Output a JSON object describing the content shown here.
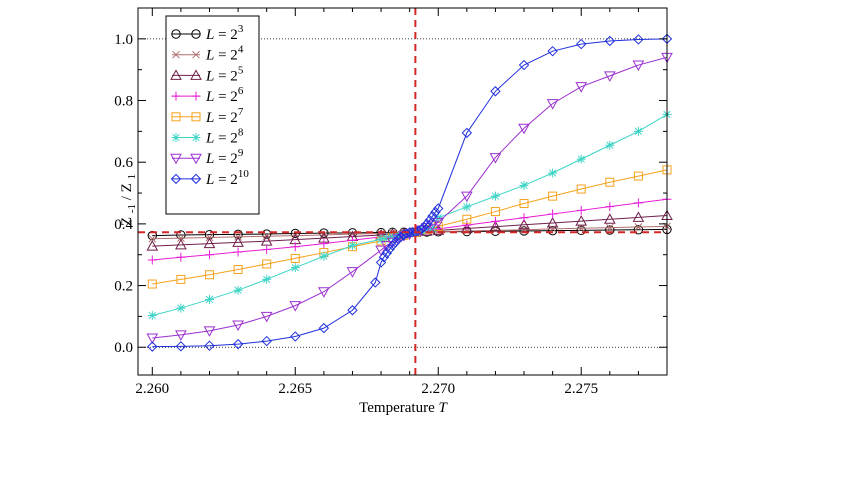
{
  "chart_data": {
    "type": "line",
    "xlabel": "Temperature",
    "xlabel_symbol": "T",
    "ylabel": "Z",
    "ylabel_num_sub": "-1",
    "ylabel_den": "Z",
    "ylabel_den_sub": "1",
    "xlim": [
      2.2595,
      2.278
    ],
    "ylim": [
      -0.09,
      1.1
    ],
    "xticks": [
      2.26,
      2.265,
      2.27,
      2.275
    ],
    "xtick_labels": [
      "2.260",
      "2.265",
      "2.270",
      "2.275"
    ],
    "yticks": [
      0.0,
      0.2,
      0.4,
      0.6,
      0.8,
      1.0
    ],
    "ytick_labels": [
      "0.0",
      "0.2",
      "0.4",
      "0.6",
      "0.8",
      "1.0"
    ],
    "reference_lines": {
      "critical_temperature": 2.2692,
      "critical_ratio": 0.373,
      "dotted_levels": [
        0.0,
        1.0
      ]
    },
    "legend_position": "top-left",
    "series": [
      {
        "name": "L = 2^3",
        "name_base": "L = 2",
        "name_exp": "3",
        "color": "#000000",
        "marker": "circle",
        "x": [
          2.26,
          2.261,
          2.262,
          2.263,
          2.264,
          2.265,
          2.266,
          2.267,
          2.268,
          2.2684,
          2.2688,
          2.2692,
          2.2696,
          2.27,
          2.271,
          2.272,
          2.273,
          2.274,
          2.275,
          2.276,
          2.277,
          2.278
        ],
        "y": [
          0.362,
          0.364,
          0.365,
          0.366,
          0.367,
          0.369,
          0.37,
          0.371,
          0.372,
          0.3725,
          0.373,
          0.3735,
          0.374,
          0.3745,
          0.375,
          0.376,
          0.377,
          0.378,
          0.379,
          0.38,
          0.381,
          0.382
        ]
      },
      {
        "name": "L = 2^4",
        "name_base": "L = 2",
        "name_exp": "4",
        "color": "#b06f6f",
        "marker": "x",
        "x": [
          2.26,
          2.261,
          2.262,
          2.263,
          2.264,
          2.265,
          2.266,
          2.267,
          2.268,
          2.2684,
          2.2688,
          2.2692,
          2.2696,
          2.27,
          2.271,
          2.272,
          2.273,
          2.274,
          2.275,
          2.276,
          2.277,
          2.278
        ],
        "y": [
          0.352,
          0.354,
          0.356,
          0.358,
          0.36,
          0.362,
          0.364,
          0.367,
          0.369,
          0.371,
          0.372,
          0.373,
          0.374,
          0.375,
          0.377,
          0.379,
          0.381,
          0.384,
          0.386,
          0.388,
          0.39,
          0.392
        ]
      },
      {
        "name": "L = 2^5",
        "name_base": "L = 2",
        "name_exp": "5",
        "color": "#6e1f4a",
        "marker": "triangle-up",
        "x": [
          2.26,
          2.261,
          2.262,
          2.263,
          2.264,
          2.265,
          2.266,
          2.267,
          2.268,
          2.2684,
          2.2688,
          2.2692,
          2.2696,
          2.27,
          2.271,
          2.272,
          2.273,
          2.274,
          2.275,
          2.276,
          2.277,
          2.278
        ],
        "y": [
          0.328,
          0.332,
          0.336,
          0.34,
          0.344,
          0.349,
          0.354,
          0.359,
          0.364,
          0.367,
          0.37,
          0.373,
          0.376,
          0.379,
          0.385,
          0.391,
          0.397,
          0.403,
          0.409,
          0.415,
          0.421,
          0.427
        ]
      },
      {
        "name": "L = 2^6",
        "name_base": "L = 2",
        "name_exp": "6",
        "color": "#e81cd8",
        "marker": "plus",
        "x": [
          2.26,
          2.261,
          2.262,
          2.263,
          2.264,
          2.265,
          2.266,
          2.267,
          2.268,
          2.2684,
          2.2688,
          2.2692,
          2.2696,
          2.27,
          2.271,
          2.272,
          2.273,
          2.274,
          2.275,
          2.276,
          2.277,
          2.278
        ],
        "y": [
          0.283,
          0.292,
          0.3,
          0.309,
          0.317,
          0.326,
          0.336,
          0.347,
          0.358,
          0.362,
          0.367,
          0.373,
          0.378,
          0.384,
          0.396,
          0.408,
          0.42,
          0.432,
          0.444,
          0.456,
          0.468,
          0.48
        ]
      },
      {
        "name": "L = 2^7",
        "name_base": "L = 2",
        "name_exp": "7",
        "color": "#f4a21c",
        "marker": "square",
        "x": [
          2.26,
          2.261,
          2.262,
          2.263,
          2.264,
          2.265,
          2.266,
          2.267,
          2.268,
          2.2684,
          2.2688,
          2.2692,
          2.2696,
          2.27,
          2.271,
          2.272,
          2.273,
          2.274,
          2.275,
          2.276,
          2.277,
          2.278
        ],
        "y": [
          0.205,
          0.22,
          0.235,
          0.252,
          0.27,
          0.288,
          0.307,
          0.326,
          0.345,
          0.354,
          0.363,
          0.373,
          0.382,
          0.392,
          0.415,
          0.44,
          0.466,
          0.49,
          0.513,
          0.535,
          0.555,
          0.575
        ]
      },
      {
        "name": "L = 2^8",
        "name_base": "L = 2",
        "name_exp": "8",
        "color": "#3fd4c6",
        "marker": "asterisk",
        "x": [
          2.26,
          2.261,
          2.262,
          2.263,
          2.264,
          2.265,
          2.266,
          2.267,
          2.268,
          2.2682,
          2.2684,
          2.2686,
          2.2688,
          2.269,
          2.2692,
          2.2694,
          2.2696,
          2.2698,
          2.27,
          2.271,
          2.272,
          2.273,
          2.274,
          2.275,
          2.276,
          2.277,
          2.278
        ],
        "y": [
          0.103,
          0.127,
          0.155,
          0.185,
          0.22,
          0.258,
          0.295,
          0.33,
          0.35,
          0.354,
          0.358,
          0.363,
          0.367,
          0.37,
          0.373,
          0.377,
          0.381,
          0.385,
          0.42,
          0.455,
          0.49,
          0.525,
          0.565,
          0.61,
          0.655,
          0.7,
          0.755
        ]
      },
      {
        "name": "L = 2^9",
        "name_base": "L = 2",
        "name_exp": "9",
        "color": "#9b30d0",
        "marker": "triangle-down",
        "x": [
          2.26,
          2.261,
          2.262,
          2.263,
          2.264,
          2.265,
          2.266,
          2.267,
          2.268,
          2.2682,
          2.2684,
          2.2686,
          2.2688,
          2.269,
          2.2692,
          2.2694,
          2.2696,
          2.2698,
          2.27,
          2.271,
          2.272,
          2.273,
          2.274,
          2.275,
          2.276,
          2.277,
          2.278
        ],
        "y": [
          0.03,
          0.04,
          0.053,
          0.072,
          0.1,
          0.135,
          0.18,
          0.245,
          0.315,
          0.33,
          0.341,
          0.352,
          0.362,
          0.367,
          0.373,
          0.38,
          0.388,
          0.396,
          0.405,
          0.49,
          0.615,
          0.71,
          0.79,
          0.845,
          0.88,
          0.915,
          0.94
        ]
      },
      {
        "name": "L = 2^10",
        "name_base": "L = 2",
        "name_exp": "10",
        "color": "#1f2fdc",
        "marker": "diamond",
        "x": [
          2.26,
          2.261,
          2.262,
          2.263,
          2.264,
          2.265,
          2.266,
          2.267,
          2.2678,
          2.268,
          2.2681,
          2.2682,
          2.2683,
          2.2684,
          2.2685,
          2.2686,
          2.2687,
          2.2688,
          2.2689,
          2.269,
          2.2691,
          2.2692,
          2.2693,
          2.2694,
          2.2695,
          2.2696,
          2.2697,
          2.2698,
          2.2699,
          2.27,
          2.271,
          2.272,
          2.273,
          2.274,
          2.275,
          2.276,
          2.277,
          2.278
        ],
        "y": [
          0.002,
          0.003,
          0.005,
          0.01,
          0.02,
          0.035,
          0.062,
          0.12,
          0.21,
          0.275,
          0.292,
          0.305,
          0.318,
          0.33,
          0.34,
          0.35,
          0.358,
          0.364,
          0.369,
          0.372,
          0.373,
          0.374,
          0.377,
          0.382,
          0.39,
          0.4,
          0.412,
          0.425,
          0.438,
          0.45,
          0.695,
          0.83,
          0.915,
          0.96,
          0.983,
          0.993,
          0.998,
          1.0
        ]
      }
    ]
  }
}
